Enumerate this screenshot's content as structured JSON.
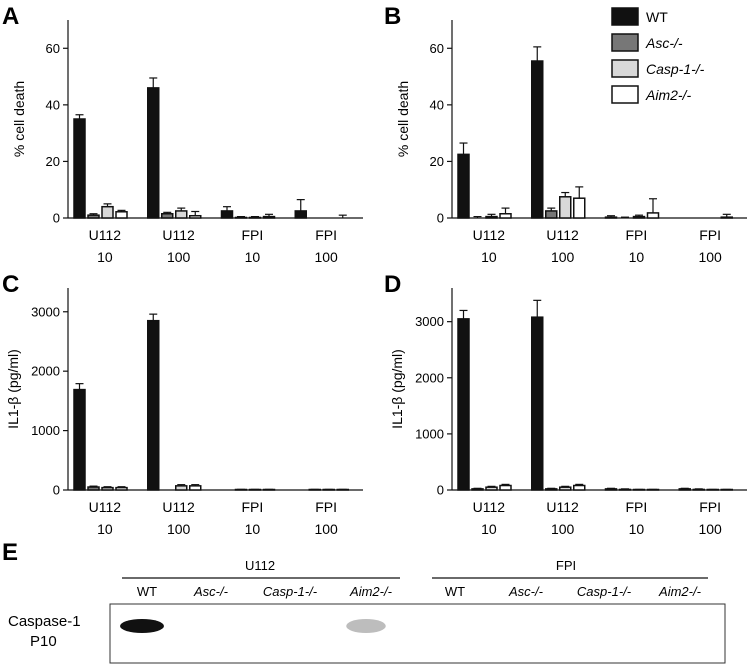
{
  "colors": {
    "WT": "#111111",
    "Asc-/-": "#777777",
    "Casp-1-/-": "#d8d8d8",
    "Aim2-/-": "#ffffff"
  },
  "legend": {
    "position": "top-right",
    "entries": [
      "WT",
      "Asc-/-",
      "Casp-1-/-",
      "Aim2-/-"
    ]
  },
  "chart_data": [
    {
      "panel": "A",
      "type": "bar",
      "ylabel": "% cell death",
      "ylim": [
        0,
        70
      ],
      "yticks": [
        0,
        20,
        40,
        60
      ],
      "categories": [
        [
          "U112",
          "10"
        ],
        [
          "U112",
          "100"
        ],
        [
          "FPI",
          "10"
        ],
        [
          "FPI",
          "100"
        ]
      ],
      "series": [
        {
          "name": "WT",
          "values": [
            35,
            46,
            2.5,
            2.5
          ],
          "errors": [
            1.5,
            3.5,
            1.5,
            4
          ]
        },
        {
          "name": "Asc-/-",
          "values": [
            1,
            1.5,
            0.2,
            0
          ],
          "errors": [
            0.5,
            0.5,
            0.3,
            0
          ]
        },
        {
          "name": "Casp-1-/-",
          "values": [
            4,
            2.5,
            0.2,
            0
          ],
          "errors": [
            1,
            1,
            0.3,
            0
          ]
        },
        {
          "name": "Aim2-/-",
          "values": [
            2.2,
            0.8,
            0.5,
            0
          ],
          "errors": [
            0.5,
            1.5,
            0.8,
            1
          ]
        }
      ]
    },
    {
      "panel": "B",
      "type": "bar",
      "ylabel": "% cell death",
      "ylim": [
        0,
        70
      ],
      "yticks": [
        0,
        20,
        40,
        60
      ],
      "categories": [
        [
          "U112",
          "10"
        ],
        [
          "U112",
          "100"
        ],
        [
          "FPI",
          "10"
        ],
        [
          "FPI",
          "100"
        ]
      ],
      "series": [
        {
          "name": "WT",
          "values": [
            22.5,
            55.5,
            0.3,
            0
          ],
          "errors": [
            4,
            5,
            0.5,
            0
          ]
        },
        {
          "name": "Asc-/-",
          "values": [
            0,
            2.5,
            0,
            0
          ],
          "errors": [
            0.5,
            1,
            0.3,
            0
          ]
        },
        {
          "name": "Casp-1-/-",
          "values": [
            0.5,
            7.5,
            0.5,
            0
          ],
          "errors": [
            0.8,
            1.5,
            0.5,
            0
          ]
        },
        {
          "name": "Aim2-/-",
          "values": [
            1.5,
            7,
            1.8,
            0.3
          ],
          "errors": [
            2,
            4,
            5,
            1
          ]
        }
      ]
    },
    {
      "panel": "C",
      "type": "bar",
      "ylabel": "IL1-β (pg/ml)",
      "ylim": [
        0,
        3400
      ],
      "yticks": [
        0,
        1000,
        2000,
        3000
      ],
      "categories": [
        [
          "U112",
          "10"
        ],
        [
          "U112",
          "100"
        ],
        [
          "FPI",
          "10"
        ],
        [
          "FPI",
          "100"
        ]
      ],
      "series": [
        {
          "name": "WT",
          "values": [
            1690,
            2850,
            0,
            0
          ],
          "errors": [
            100,
            110,
            0,
            0
          ]
        },
        {
          "name": "Asc-/-",
          "values": [
            50,
            0,
            5,
            5
          ],
          "errors": [
            15,
            0,
            5,
            5
          ]
        },
        {
          "name": "Casp-1-/-",
          "values": [
            40,
            70,
            5,
            5
          ],
          "errors": [
            15,
            20,
            5,
            5
          ]
        },
        {
          "name": "Aim2-/-",
          "values": [
            40,
            70,
            5,
            5
          ],
          "errors": [
            15,
            20,
            5,
            5
          ]
        }
      ]
    },
    {
      "panel": "D",
      "type": "bar",
      "ylabel": "IL1-β (pg/ml)",
      "ylim": [
        0,
        3600
      ],
      "yticks": [
        0,
        1000,
        2000,
        3000
      ],
      "categories": [
        [
          "U112",
          "10"
        ],
        [
          "U112",
          "100"
        ],
        [
          "FPI",
          "10"
        ],
        [
          "FPI",
          "100"
        ]
      ],
      "series": [
        {
          "name": "WT",
          "values": [
            3050,
            3080,
            20,
            20
          ],
          "errors": [
            150,
            300,
            10,
            10
          ]
        },
        {
          "name": "Asc-/-",
          "values": [
            20,
            20,
            10,
            10
          ],
          "errors": [
            10,
            10,
            10,
            10
          ]
        },
        {
          "name": "Casp-1-/-",
          "values": [
            50,
            50,
            5,
            5
          ],
          "errors": [
            15,
            15,
            5,
            5
          ]
        },
        {
          "name": "Aim2-/-",
          "values": [
            80,
            80,
            5,
            5
          ],
          "errors": [
            20,
            20,
            5,
            5
          ]
        }
      ]
    }
  ],
  "blot": {
    "panel": "E",
    "row_label_1": "Caspase-1",
    "row_label_2": "P10",
    "groups": [
      {
        "name": "U112",
        "lanes": [
          "WT",
          "Asc-/-",
          "Casp-1-/-",
          "Aim2-/-"
        ]
      },
      {
        "name": "FPI",
        "lanes": [
          "WT",
          "Asc-/-",
          "Casp-1-/-",
          "Aim2-/-"
        ]
      }
    ],
    "band_intensity": [
      1.0,
      0,
      0,
      0.15,
      0,
      0,
      0,
      0
    ]
  }
}
